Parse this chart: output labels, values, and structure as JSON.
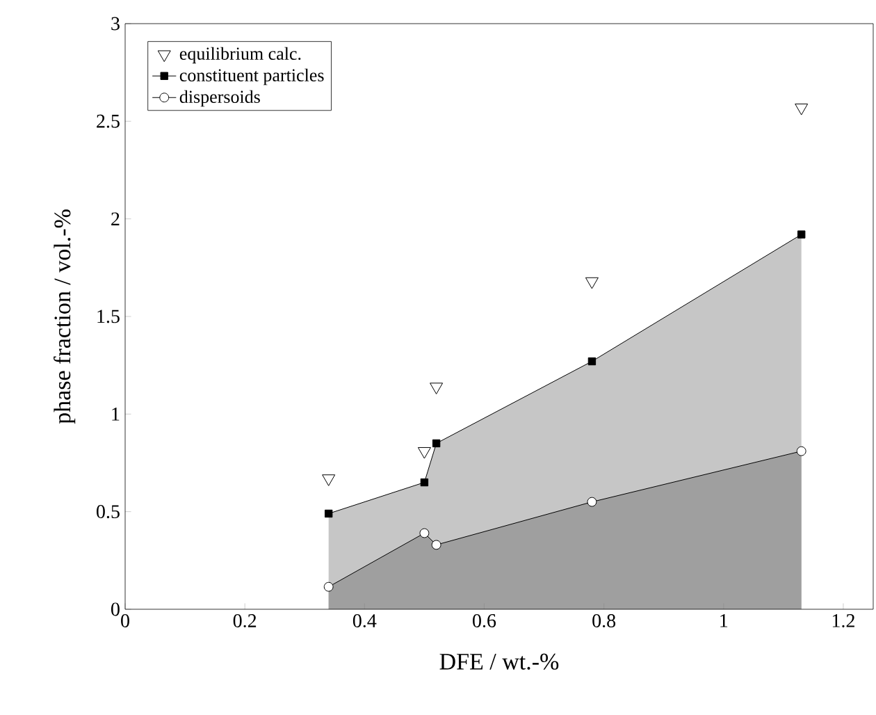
{
  "chart_data": {
    "type": "scatter",
    "xlabel": "DFE / wt.-%",
    "ylabel": "phase fraction / vol.-%",
    "x": [
      0.34,
      0.5,
      0.52,
      0.78,
      1.13
    ],
    "series": [
      {
        "name": "equilibrium calc.",
        "type": "scatter",
        "marker": "triangle",
        "color": "#000000",
        "values": [
          0.67,
          0.81,
          1.14,
          1.68,
          2.57
        ]
      },
      {
        "name": "constituent particles",
        "type": "area",
        "marker": "square",
        "color": "#000000",
        "values": [
          0.49,
          0.65,
          0.85,
          1.27,
          1.92
        ]
      },
      {
        "name": "dispersoids",
        "type": "area",
        "marker": "circle",
        "color": "#000000",
        "values": [
          0.115,
          0.39,
          0.33,
          0.55,
          0.81
        ]
      }
    ],
    "xlim": [
      0,
      1.25
    ],
    "ylim": [
      0,
      3
    ],
    "xticks": [
      0,
      0.2,
      0.4,
      0.6,
      0.8,
      1,
      1.2
    ],
    "yticks": [
      0,
      0.5,
      1,
      1.5,
      2,
      2.5,
      3
    ],
    "legend": "top left",
    "grid": false
  }
}
